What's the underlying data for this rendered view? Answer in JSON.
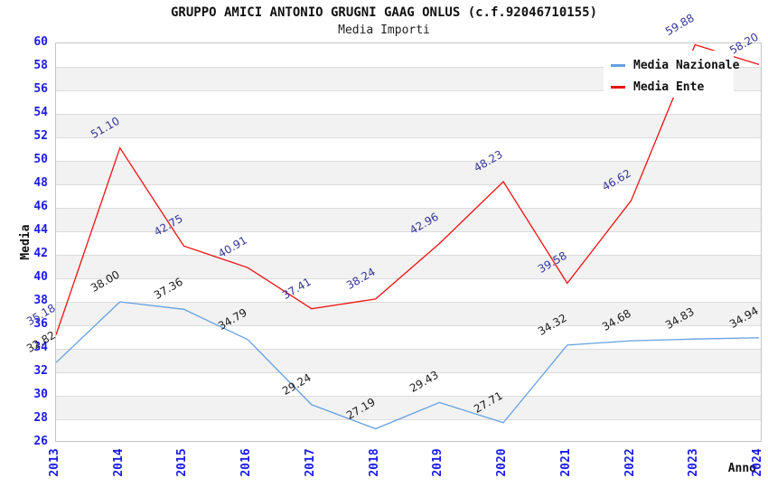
{
  "header": {
    "title": "GRUPPO AMICI ANTONIO GRUGNI GAAG ONLUS (c.f.92046710155)",
    "subtitle": "Media Importi"
  },
  "chart_data": {
    "type": "line",
    "title": "GRUPPO AMICI ANTONIO GRUGNI GAAG ONLUS (c.f.92046710155)",
    "subtitle": "Media Importi",
    "xlabel": "Anno",
    "ylabel": "Media",
    "categories": [
      "2013",
      "2014",
      "2015",
      "2016",
      "2017",
      "2018",
      "2019",
      "2020",
      "2021",
      "2022",
      "2023",
      "2024"
    ],
    "series": [
      {
        "name": "Media Nazionale",
        "color": "#64a0e0",
        "label_color": "#1a1a1a",
        "values": [
          32.82,
          38.0,
          37.36,
          34.79,
          29.24,
          27.19,
          29.43,
          27.71,
          34.32,
          34.68,
          34.83,
          34.94
        ]
      },
      {
        "name": "Media Ente",
        "color": "#ee1111",
        "label_color": "#333399",
        "values": [
          35.18,
          51.1,
          42.75,
          40.91,
          37.41,
          38.24,
          42.96,
          48.23,
          39.58,
          46.62,
          59.88,
          58.2
        ]
      }
    ],
    "ylim": [
      26,
      60
    ],
    "ytick_step": 2,
    "legend_position": "top-right",
    "grid": "horizontal gridlines with alternating gray bands",
    "colors": {
      "tick_label": "#1a1ae6",
      "band": "#f2f2f2",
      "gridline": "#dcdcdc",
      "plot_border": "#c4c4c4",
      "background": "#ffffff"
    }
  }
}
